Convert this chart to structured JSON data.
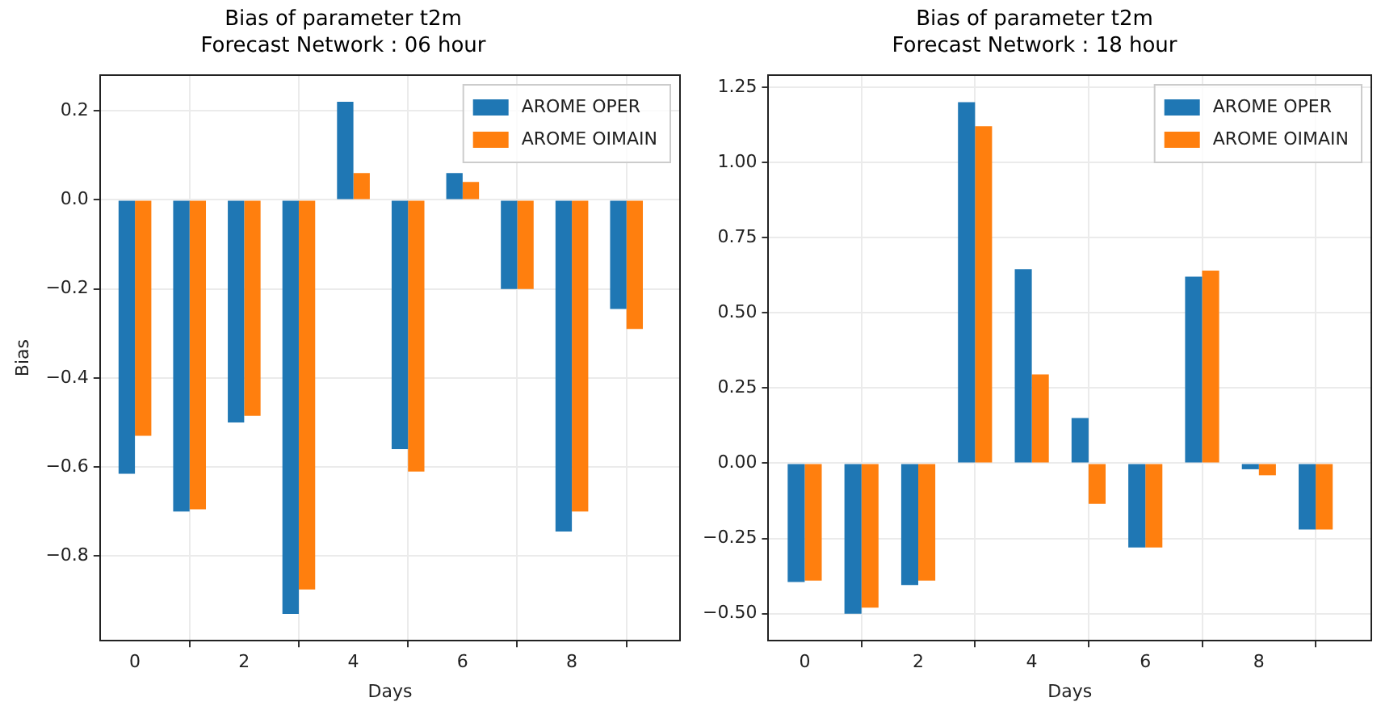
{
  "chart_data": [
    {
      "type": "bar",
      "title": "Bias of parameter t2m\nForecast Network : 06 hour",
      "xlabel": "Days",
      "ylabel": "Bias",
      "x": [
        0,
        1,
        2,
        3,
        4,
        5,
        6,
        7,
        8,
        9
      ],
      "series": [
        {
          "name": "AROME OPER",
          "color": "#1f77b4",
          "values": [
            -0.615,
            -0.7,
            -0.5,
            -0.93,
            0.22,
            -0.56,
            0.06,
            -0.2,
            -0.745,
            -0.245
          ]
        },
        {
          "name": "AROME OIMAIN",
          "color": "#ff7f0e",
          "values": [
            -0.53,
            -0.695,
            -0.485,
            -0.875,
            0.06,
            -0.61,
            0.04,
            -0.2,
            -0.7,
            -0.29
          ]
        }
      ],
      "xlim": [
        -0.64,
        9.98
      ],
      "xticks": [
        0,
        2,
        4,
        6,
        8
      ],
      "ylim": [
        -0.99,
        0.28
      ],
      "yticks": [
        {
          "value": -0.8,
          "label": "−0.8"
        },
        {
          "value": -0.6,
          "label": "−0.6"
        },
        {
          "value": -0.4,
          "label": "−0.4"
        },
        {
          "value": -0.2,
          "label": "−0.2"
        },
        {
          "value": 0,
          "label": "0.0"
        },
        0.2
      ],
      "grid": true,
      "legend": "top right"
    },
    {
      "type": "bar",
      "title": "Bias of parameter t2m\nForecast Network : 18 hour",
      "xlabel": "Days",
      "x": [
        0,
        1,
        2,
        3,
        4,
        5,
        6,
        7,
        8,
        9
      ],
      "series": [
        {
          "name": "AROME OPER",
          "color": "#1f77b4",
          "values": [
            -0.395,
            -0.5,
            -0.405,
            1.2,
            0.645,
            0.15,
            -0.28,
            0.62,
            -0.02,
            -0.22
          ]
        },
        {
          "name": "AROME OIMAIN",
          "color": "#ff7f0e",
          "values": [
            -0.39,
            -0.48,
            -0.39,
            1.12,
            0.295,
            -0.135,
            -0.28,
            0.64,
            -0.04,
            -0.22
          ]
        }
      ],
      "xlim": [
        -0.64,
        9.98
      ],
      "xticks": [
        0,
        2,
        4,
        6,
        8
      ],
      "ylim": [
        -0.59,
        1.29
      ],
      "yticks": [
        {
          "value": -0.5,
          "label": "−0.50"
        },
        {
          "value": -0.25,
          "label": "−0.25"
        },
        {
          "value": 0,
          "label": "0.00"
        },
        0.25,
        {
          "value": 0.5,
          "label": "0.50"
        },
        0.75,
        {
          "value": 1,
          "label": "1.00"
        },
        1.25
      ],
      "grid": true,
      "legend": "top right"
    }
  ]
}
